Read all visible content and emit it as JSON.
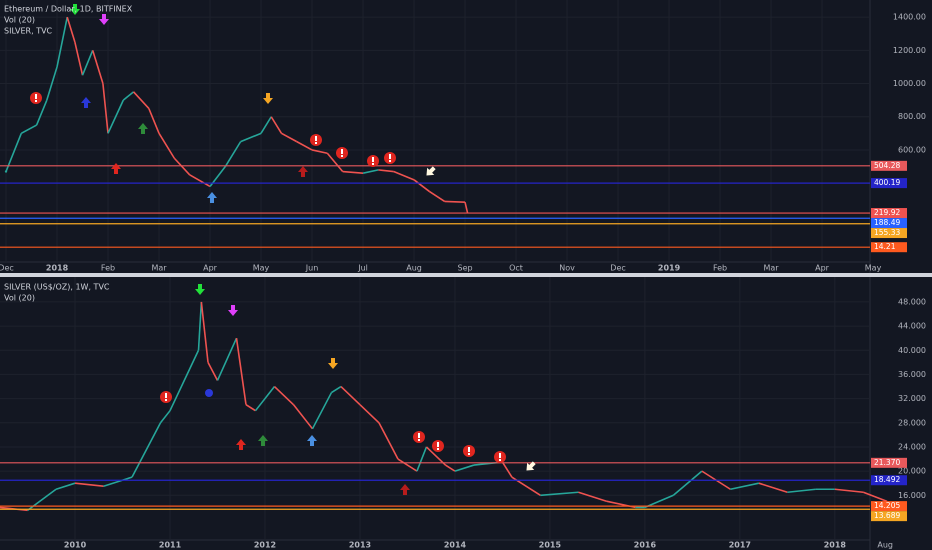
{
  "chart_data": [
    {
      "type": "line",
      "title": "Ethereum / Dollar, 1D, BITFINEX",
      "volume_label": "Vol (20)",
      "overlay_label": "SILVER, TVC",
      "x": [
        0,
        0.3,
        0.6,
        0.8,
        1.0,
        1.2,
        1.35,
        1.5,
        1.7,
        1.9,
        2.0,
        2.3,
        2.5,
        2.8,
        3.0,
        3.3,
        3.6,
        4.0,
        4.3,
        4.6,
        5.0,
        5.2,
        5.4,
        5.7,
        6.0,
        6.3,
        6.6,
        7.0,
        7.3,
        7.6,
        8.0,
        8.3,
        8.6,
        9.0,
        9.05
      ],
      "series": [
        {
          "color_up": "#26a69a",
          "color_down": "#ef5350",
          "values": [
            470,
            700,
            750,
            900,
            1100,
            1400,
            1250,
            1050,
            1200,
            1000,
            700,
            900,
            950,
            850,
            700,
            550,
            450,
            380,
            500,
            650,
            700,
            800,
            700,
            650,
            600,
            580,
            470,
            460,
            480,
            470,
            420,
            350,
            290,
            285,
            220
          ]
        }
      ],
      "xlim": [
        -0.118,
        16.94
      ],
      "xticks": [
        {
          "value": 0,
          "label": "Dec"
        },
        {
          "value": 1,
          "label": "2018"
        },
        {
          "value": 2,
          "label": "Feb"
        },
        {
          "value": 3,
          "label": "Mar"
        },
        {
          "value": 4,
          "label": "Apr"
        },
        {
          "value": 5,
          "label": "May"
        },
        {
          "value": 6,
          "label": "Jun"
        },
        {
          "value": 7,
          "label": "Jul"
        },
        {
          "value": 8,
          "label": "Aug"
        },
        {
          "value": 9,
          "label": "Sep"
        },
        {
          "value": 10,
          "label": "Oct"
        },
        {
          "value": 11,
          "label": "Nov"
        },
        {
          "value": 12,
          "label": "Dec"
        },
        {
          "value": 13,
          "label": "2019"
        },
        {
          "value": 14,
          "label": "Feb"
        },
        {
          "value": 15,
          "label": "Mar"
        },
        {
          "value": 16,
          "label": "Apr"
        },
        {
          "value": 17,
          "label": "May"
        }
      ],
      "ylim": [
        -75,
        1455
      ],
      "yticks": [
        {
          "value": 600,
          "label": "600.00"
        },
        {
          "value": 800,
          "label": "800.00"
        },
        {
          "value": 1000,
          "label": "1000.00"
        },
        {
          "value": 1200,
          "label": "1200.00"
        },
        {
          "value": 1400,
          "label": "1400.00"
        }
      ],
      "levels": {
        "values": [
          504.28,
          400.19,
          219.92,
          188.49,
          155.33,
          14.21
        ],
        "value_labels": [
          "504.28",
          "400.19",
          "219.92",
          "188.49",
          "155.33",
          "14.21"
        ],
        "colors": [
          "#e8595c",
          "#2424c8",
          "#ef5350",
          "#2962ff",
          "#f5a623",
          "#ff5a1f"
        ]
      },
      "grid": true
    },
    {
      "type": "line",
      "title": "SILVER (US$/OZ), 1W, TVC",
      "volume_label": "Vol (20)",
      "x": [
        2009.2,
        2009.5,
        2009.8,
        2010.0,
        2010.3,
        2010.6,
        2010.9,
        2011.0,
        2011.3,
        2011.33,
        2011.4,
        2011.5,
        2011.7,
        2011.8,
        2011.9,
        2012.1,
        2012.3,
        2012.5,
        2012.7,
        2012.8,
        2013.0,
        2013.2,
        2013.4,
        2013.6,
        2013.7,
        2013.9,
        2014.0,
        2014.2,
        2014.5,
        2014.6,
        2014.9,
        2015.3,
        2015.6,
        2015.9,
        2016.0,
        2016.3,
        2016.6,
        2016.9,
        2017.2,
        2017.5,
        2017.8,
        2018.0,
        2018.3,
        2018.55
      ],
      "series": [
        {
          "color_up": "#26a69a",
          "color_down": "#ef5350",
          "values": [
            14,
            13.5,
            17,
            18,
            17.5,
            19,
            28,
            30,
            40,
            48,
            38,
            35,
            42,
            31,
            30,
            34,
            31,
            27,
            33,
            34,
            31,
            28,
            22,
            20,
            24,
            21,
            20,
            21,
            21.5,
            19,
            16,
            16.5,
            15,
            14,
            14,
            16,
            20,
            17,
            18,
            16.5,
            17,
            17,
            16.5,
            15
          ]
        }
      ],
      "xlim": [
        2009.21,
        2018.37
      ],
      "xticks": [
        2010,
        2011,
        2012,
        2013,
        2014,
        2015,
        2016,
        2017,
        2018,
        {
          "value": 2018.53,
          "label": "Aug"
        }
      ],
      "ylim": [
        8.6,
        50.8
      ],
      "yticks": [
        {
          "value": 16,
          "label": "16.000"
        },
        {
          "value": 20,
          "label": "20.000"
        },
        {
          "value": 24,
          "label": "24.000"
        },
        {
          "value": 28,
          "label": "28.000"
        },
        {
          "value": 32,
          "label": "32.000"
        },
        {
          "value": 36,
          "label": "36.000"
        },
        {
          "value": 40,
          "label": "40.000"
        },
        {
          "value": 44,
          "label": "44.000"
        },
        {
          "value": 48,
          "label": "48.000"
        }
      ],
      "levels": {
        "values": [
          21.37,
          18.492,
          14.205,
          13.689
        ],
        "value_labels": [
          "21.370",
          "18.492",
          "14.205",
          "13.689"
        ],
        "colors": [
          "#e8595c",
          "#2424c8",
          "#ff5a1f",
          "#f5a623"
        ]
      },
      "grid": true
    }
  ]
}
